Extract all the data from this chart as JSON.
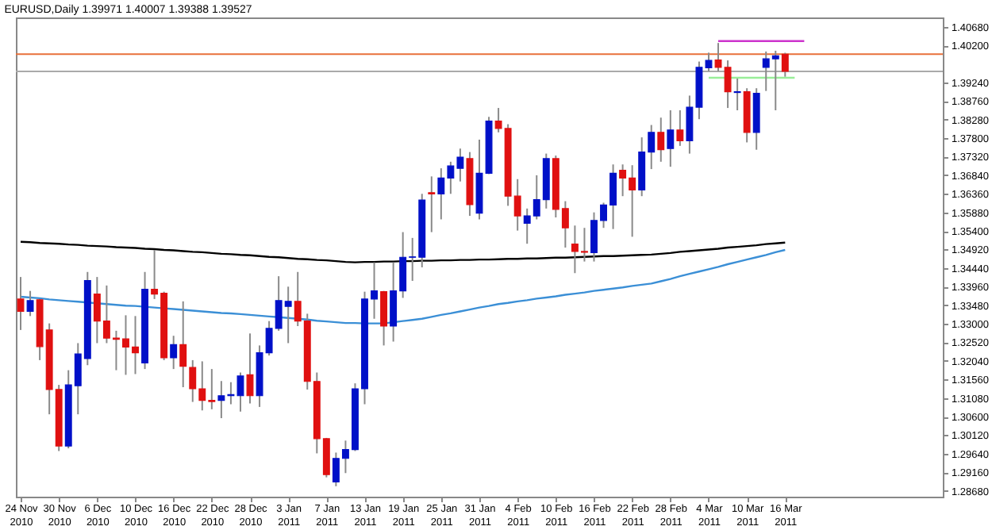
{
  "chart_data": {
    "type": "candlestick",
    "title": "EURUSD,Daily 1.39971 1.40007 1.39388 1.39527",
    "categories": [
      "24 Nov 2010",
      null,
      null,
      null,
      "30 Nov 2010",
      null,
      null,
      null,
      "6 Dec 2010",
      null,
      null,
      null,
      "10 Dec 2010",
      null,
      null,
      null,
      "16 Dec 2010",
      null,
      null,
      null,
      "22 Dec 2010",
      null,
      null,
      null,
      "28 Dec 2010",
      null,
      null,
      null,
      "3 Jan 2011",
      null,
      null,
      null,
      "7 Jan 2011",
      null,
      null,
      null,
      "13 Jan 2011",
      null,
      null,
      null,
      "19 Jan 2011",
      null,
      null,
      null,
      "25 Jan 2011",
      null,
      null,
      null,
      "31 Jan 2011",
      null,
      null,
      null,
      "4 Feb 2011",
      null,
      null,
      null,
      "10 Feb 2011",
      null,
      null,
      null,
      "16 Feb 2011",
      null,
      null,
      null,
      "22 Feb 2011",
      null,
      null,
      null,
      "28 Feb 2011",
      null,
      null,
      null,
      "4 Mar 2011",
      null,
      null,
      null,
      "10 Mar 2011",
      null,
      null,
      null,
      "16 Mar 2011",
      null,
      null,
      null,
      null,
      null,
      null,
      null,
      null,
      null,
      null,
      null,
      null,
      null,
      null,
      null,
      null
    ],
    "ohlc": [
      [
        1.3364,
        1.3421,
        1.3284,
        1.3332
      ],
      [
        1.3332,
        1.3385,
        1.332,
        1.336
      ],
      [
        1.3362,
        1.3364,
        1.3206,
        1.3241
      ],
      [
        1.3284,
        1.3301,
        1.3066,
        1.313
      ],
      [
        1.313,
        1.3142,
        1.2971,
        1.2984
      ],
      [
        1.2984,
        1.318,
        1.2978,
        1.3142
      ],
      [
        1.314,
        1.325,
        1.3066,
        1.3222
      ],
      [
        1.321,
        1.3434,
        1.3193,
        1.3412
      ],
      [
        1.3377,
        1.3421,
        1.325,
        1.3307
      ],
      [
        1.3307,
        1.3399,
        1.325,
        1.3263
      ],
      [
        1.3263,
        1.3282,
        1.318,
        1.326
      ],
      [
        1.3261,
        1.3322,
        1.3168,
        1.324
      ],
      [
        1.324,
        1.332,
        1.317,
        1.3225
      ],
      [
        1.3199,
        1.3434,
        1.3183,
        1.3389
      ],
      [
        1.3389,
        1.3491,
        1.3364,
        1.3377
      ],
      [
        1.3379,
        1.3383,
        1.3206,
        1.3212
      ],
      [
        1.3212,
        1.3269,
        1.3183,
        1.3246
      ],
      [
        1.3246,
        1.3358,
        1.3136,
        1.319
      ],
      [
        1.3187,
        1.3206,
        1.3098,
        1.3132
      ],
      [
        1.3132,
        1.3203,
        1.3076,
        1.3102
      ],
      [
        1.3102,
        1.3183,
        1.3079,
        1.3099
      ],
      [
        1.3102,
        1.3152,
        1.3056,
        1.3114
      ],
      [
        1.3114,
        1.3149,
        1.3092,
        1.3117
      ],
      [
        1.3114,
        1.3174,
        1.3073,
        1.3165
      ],
      [
        1.3168,
        1.3275,
        1.3094,
        1.3114
      ],
      [
        1.3114,
        1.3244,
        1.3085,
        1.3225
      ],
      [
        1.3225,
        1.3307,
        1.3218,
        1.3288
      ],
      [
        1.3288,
        1.3423,
        1.3282,
        1.336
      ],
      [
        1.3345,
        1.3396,
        1.325,
        1.3358
      ],
      [
        1.3358,
        1.3434,
        1.3294,
        1.3307
      ],
      [
        1.3307,
        1.3326,
        1.313,
        1.3151
      ],
      [
        1.3151,
        1.3174,
        1.2965,
        1.3003
      ],
      [
        1.3003,
        1.3005,
        1.2903,
        1.291
      ],
      [
        1.2891,
        1.2967,
        1.288,
        1.2952
      ],
      [
        1.2952,
        1.2998,
        1.2914,
        1.2975
      ],
      [
        1.2975,
        1.3146,
        1.2971,
        1.3132
      ],
      [
        1.3132,
        1.3383,
        1.3092,
        1.3364
      ],
      [
        1.3364,
        1.3459,
        1.3313,
        1.3385
      ],
      [
        1.3383,
        1.3385,
        1.3244,
        1.3294
      ],
      [
        1.3294,
        1.3459,
        1.3254,
        1.3385
      ],
      [
        1.3385,
        1.3537,
        1.3367,
        1.3472
      ],
      [
        1.3472,
        1.3522,
        1.3411,
        1.3473
      ],
      [
        1.3472,
        1.3636,
        1.3446,
        1.362
      ],
      [
        1.3639,
        1.3681,
        1.3537,
        1.3636
      ],
      [
        1.3636,
        1.3702,
        1.357,
        1.3677
      ],
      [
        1.3677,
        1.3719,
        1.3636,
        1.3708
      ],
      [
        1.3702,
        1.3753,
        1.3668,
        1.3731
      ],
      [
        1.3727,
        1.3744,
        1.3579,
        1.3608
      ],
      [
        1.3586,
        1.3776,
        1.357,
        1.3689
      ],
      [
        1.3689,
        1.3835,
        1.3687,
        1.3824
      ],
      [
        1.3824,
        1.3858,
        1.3795,
        1.3805
      ],
      [
        1.3805,
        1.3816,
        1.3605,
        1.363
      ],
      [
        1.363,
        1.3674,
        1.3541,
        1.3579
      ],
      [
        1.356,
        1.3598,
        1.3507,
        1.3579
      ],
      [
        1.3579,
        1.3684,
        1.357,
        1.3621
      ],
      [
        1.3621,
        1.374,
        1.3598,
        1.3727
      ],
      [
        1.3727,
        1.3735,
        1.3575,
        1.3596
      ],
      [
        1.3598,
        1.3617,
        1.3497,
        1.3548
      ],
      [
        1.3506,
        1.3554,
        1.3431,
        1.3487
      ],
      [
        1.3487,
        1.3548,
        1.3461,
        1.3485
      ],
      [
        1.3484,
        1.3588,
        1.3461,
        1.3567
      ],
      [
        1.3567,
        1.3613,
        1.3548,
        1.3607
      ],
      [
        1.3607,
        1.3712,
        1.3545,
        1.3689
      ],
      [
        1.3697,
        1.3712,
        1.363,
        1.3677
      ],
      [
        1.3677,
        1.371,
        1.3525,
        1.3646
      ],
      [
        1.3646,
        1.3782,
        1.363,
        1.3744
      ],
      [
        1.3744,
        1.3814,
        1.37,
        1.3795
      ],
      [
        1.3795,
        1.3833,
        1.3719,
        1.375
      ],
      [
        1.3753,
        1.3852,
        1.3706,
        1.3801
      ],
      [
        1.3801,
        1.3852,
        1.376,
        1.3773
      ],
      [
        1.3773,
        1.389,
        1.374,
        1.386
      ],
      [
        1.386,
        1.3978,
        1.3829,
        1.3963
      ],
      [
        1.3962,
        1.4001,
        1.3953,
        1.3981
      ],
      [
        1.3982,
        1.4026,
        1.3953,
        1.3963
      ],
      [
        1.3963,
        1.3981,
        1.3858,
        1.39
      ],
      [
        1.3898,
        1.3934,
        1.3852,
        1.39
      ],
      [
        1.39,
        1.3909,
        1.3769,
        1.3795
      ],
      [
        1.3795,
        1.3909,
        1.375,
        1.3896
      ],
      [
        1.3963,
        1.4004,
        1.3902,
        1.3985
      ],
      [
        1.3985,
        1.4006,
        1.3852,
        1.3993
      ],
      [
        1.39971,
        1.40007,
        1.39388,
        1.39527
      ],
      null,
      null,
      null,
      null,
      null,
      null,
      null,
      null,
      null,
      null,
      null,
      null,
      null,
      null,
      null,
      null
    ],
    "colors": [
      "#e01010",
      "#0010c8",
      "#e01010",
      "#e01010",
      "#e01010",
      "#0010c8",
      "#0010c8",
      "#0010c8",
      "#e01010",
      "#e01010",
      "#e01010",
      "#e01010",
      "#e01010",
      "#0010c8",
      "#e01010",
      "#e01010",
      "#0010c8",
      "#e01010",
      "#e01010",
      "#e01010",
      "#e01010",
      "#0010c8",
      "#0010c8",
      "#0010c8",
      "#e01010",
      "#0010c8",
      "#0010c8",
      "#0010c8",
      "#0010c8",
      "#e01010",
      "#e01010",
      "#e01010",
      "#e01010",
      "#0010c8",
      "#0010c8",
      "#0010c8",
      "#0010c8",
      "#0010c8",
      "#e01010",
      "#0010c8",
      "#0010c8",
      "#0010c8",
      "#0010c8",
      "#e01010",
      "#0010c8",
      "#0010c8",
      "#0010c8",
      "#e01010",
      "#0010c8",
      "#0010c8",
      "#e01010",
      "#e01010",
      "#e01010",
      "#0010c8",
      "#0010c8",
      "#0010c8",
      "#e01010",
      "#e01010",
      "#e01010",
      "#e01010",
      "#0010c8",
      "#0010c8",
      "#0010c8",
      "#e01010",
      "#e01010",
      "#0010c8",
      "#0010c8",
      "#e01010",
      "#0010c8",
      "#e01010",
      "#0010c8",
      "#0010c8",
      "#0010c8",
      "#e01010",
      "#e01010",
      "#0010c8",
      "#e01010",
      "#0010c8",
      "#0010c8",
      "#0010c8",
      "#e01010",
      null,
      null,
      null,
      null,
      null,
      null,
      null,
      null,
      null,
      null,
      null,
      null,
      null,
      null,
      null,
      null
    ],
    "series": [
      {
        "type": "line",
        "color": "#000000",
        "values": [
          1.3512,
          1.3511,
          1.3509,
          1.3508,
          1.3507,
          1.3505,
          1.3504,
          1.3502,
          1.3501,
          1.35,
          1.3498,
          1.3497,
          1.3496,
          1.3494,
          1.3493,
          1.3491,
          1.349,
          1.3488,
          1.3486,
          1.3485,
          1.3483,
          1.3481,
          1.348,
          1.3478,
          1.3477,
          1.3475,
          1.3473,
          1.3472,
          1.347,
          1.3468,
          1.3467,
          1.3465,
          1.3464,
          1.3462,
          1.346,
          1.3459,
          1.346,
          1.346,
          1.3461,
          1.3461,
          1.3462,
          1.3462,
          1.3463,
          1.3463,
          1.3464,
          1.3464,
          1.3465,
          1.3465,
          1.3466,
          1.3466,
          1.3467,
          1.3468,
          1.3468,
          1.3469,
          1.3469,
          1.347,
          1.3471,
          1.3471,
          1.3472,
          1.3473,
          1.3474,
          1.3475,
          1.3475,
          1.3476,
          1.3477,
          1.3478,
          1.3479,
          1.3481,
          1.3483,
          1.3486,
          1.3488,
          1.349,
          1.3492,
          1.3494,
          1.3497,
          1.3499,
          1.3501,
          1.3503,
          1.3506,
          1.3508,
          1.351,
          null,
          null,
          null,
          null,
          null,
          null,
          null,
          null,
          null,
          null,
          null,
          null,
          null,
          null,
          null,
          null
        ]
      },
      {
        "type": "line",
        "color": "#3b8fd6",
        "values": [
          1.337,
          1.3368,
          1.3366,
          1.3363,
          1.3361,
          1.3359,
          1.3357,
          1.3355,
          1.3353,
          1.3351,
          1.3349,
          1.3347,
          1.3346,
          1.3344,
          1.3342,
          1.334,
          1.3338,
          1.3336,
          1.3334,
          1.3332,
          1.333,
          1.3328,
          1.3327,
          1.3325,
          1.3323,
          1.3321,
          1.3319,
          1.3317,
          1.3315,
          1.3313,
          1.3311,
          1.3308,
          1.3306,
          1.3304,
          1.3302,
          1.3302,
          1.3301,
          1.3301,
          1.3301,
          1.3304,
          1.3307,
          1.331,
          1.3313,
          1.3318,
          1.3323,
          1.3327,
          1.3332,
          1.3337,
          1.3342,
          1.3346,
          1.3351,
          1.3354,
          1.3358,
          1.3361,
          1.3365,
          1.3368,
          1.3371,
          1.3375,
          1.3378,
          1.3381,
          1.3385,
          1.3388,
          1.3391,
          1.3394,
          1.3398,
          1.3401,
          1.3404,
          1.341,
          1.3416,
          1.3423,
          1.3429,
          1.3435,
          1.3441,
          1.3447,
          1.3454,
          1.346,
          1.3466,
          1.3472,
          1.3478,
          1.3485,
          1.3491,
          null,
          null,
          null,
          null,
          null,
          null,
          null,
          null,
          null,
          null,
          null,
          null,
          null,
          null,
          null,
          null
        ]
      },
      {
        "type": "line",
        "color": "#cc33cc",
        "values": [
          null,
          null,
          null,
          null,
          null,
          null,
          null,
          null,
          null,
          null,
          null,
          null,
          null,
          null,
          null,
          null,
          null,
          null,
          null,
          null,
          null,
          null,
          null,
          null,
          null,
          null,
          null,
          null,
          null,
          null,
          null,
          null,
          null,
          null,
          null,
          null,
          null,
          null,
          null,
          null,
          null,
          null,
          null,
          null,
          null,
          null,
          null,
          null,
          null,
          null,
          null,
          null,
          null,
          null,
          null,
          null,
          null,
          null,
          null,
          null,
          null,
          null,
          null,
          null,
          null,
          null,
          null,
          null,
          null,
          null,
          null,
          null,
          null,
          1.4031,
          1.4031,
          1.4031,
          1.4031,
          1.4031,
          1.4031,
          1.4031,
          1.4031,
          1.4031,
          1.4031,
          null,
          null,
          null,
          null,
          null,
          null,
          null,
          null,
          null,
          null,
          null,
          null,
          null,
          null
        ]
      },
      {
        "type": "line",
        "color": "#99ee99",
        "values": [
          null,
          null,
          null,
          null,
          null,
          null,
          null,
          null,
          null,
          null,
          null,
          null,
          null,
          null,
          null,
          null,
          null,
          null,
          null,
          null,
          null,
          null,
          null,
          null,
          null,
          null,
          null,
          null,
          null,
          null,
          null,
          null,
          null,
          null,
          null,
          null,
          null,
          null,
          null,
          null,
          null,
          null,
          null,
          null,
          null,
          null,
          null,
          null,
          null,
          null,
          null,
          null,
          null,
          null,
          null,
          null,
          null,
          null,
          null,
          null,
          null,
          null,
          null,
          null,
          null,
          null,
          null,
          null,
          null,
          null,
          null,
          null,
          1.3936,
          1.3936,
          1.3936,
          1.3936,
          1.3936,
          1.3936,
          1.3936,
          1.3936,
          1.3936,
          1.3936,
          null,
          null,
          null,
          null,
          null,
          null,
          null,
          null,
          null,
          null,
          null,
          null,
          null,
          null,
          null
        ]
      }
    ],
    "ref_lines": [
      {
        "axis": "y",
        "value": 1.3997,
        "color": "#e8703a"
      },
      {
        "axis": "y",
        "value": 1.39527,
        "color": "#aaaaaa"
      }
    ],
    "ylim": [
      1.2853,
      1.4092
    ],
    "yticks": [
      {
        "value": 1.2868,
        "label": "1.28680"
      },
      {
        "value": 1.2916,
        "label": "1.29160"
      },
      {
        "value": 1.2964,
        "label": "1.29640"
      },
      {
        "value": 1.3012,
        "label": "1.30120"
      },
      {
        "value": 1.306,
        "label": "1.30600"
      },
      {
        "value": 1.3108,
        "label": "1.31080"
      },
      {
        "value": 1.3156,
        "label": "1.31560"
      },
      {
        "value": 1.3204,
        "label": "1.32040"
      },
      {
        "value": 1.3252,
        "label": "1.32520"
      },
      {
        "value": 1.33,
        "label": "1.33000"
      },
      {
        "value": 1.3348,
        "label": "1.33480"
      },
      {
        "value": 1.3396,
        "label": "1.33960"
      },
      {
        "value": 1.3444,
        "label": "1.34440"
      },
      {
        "value": 1.3492,
        "label": "1.34920"
      },
      {
        "value": 1.354,
        "label": "1.35400"
      },
      {
        "value": 1.3588,
        "label": "1.35880"
      },
      {
        "value": 1.3636,
        "label": "1.36360"
      },
      {
        "value": 1.3684,
        "label": "1.36840"
      },
      {
        "value": 1.3732,
        "label": "1.37320"
      },
      {
        "value": 1.378,
        "label": "1.37800"
      },
      {
        "value": 1.3828,
        "label": "1.38280"
      },
      {
        "value": 1.3876,
        "label": "1.38760"
      },
      {
        "value": 1.3924,
        "label": "1.39240"
      },
      {
        "value": 1.402,
        "label": "1.40200"
      },
      {
        "value": 1.4068,
        "label": "1.40680"
      }
    ],
    "grid": false
  }
}
